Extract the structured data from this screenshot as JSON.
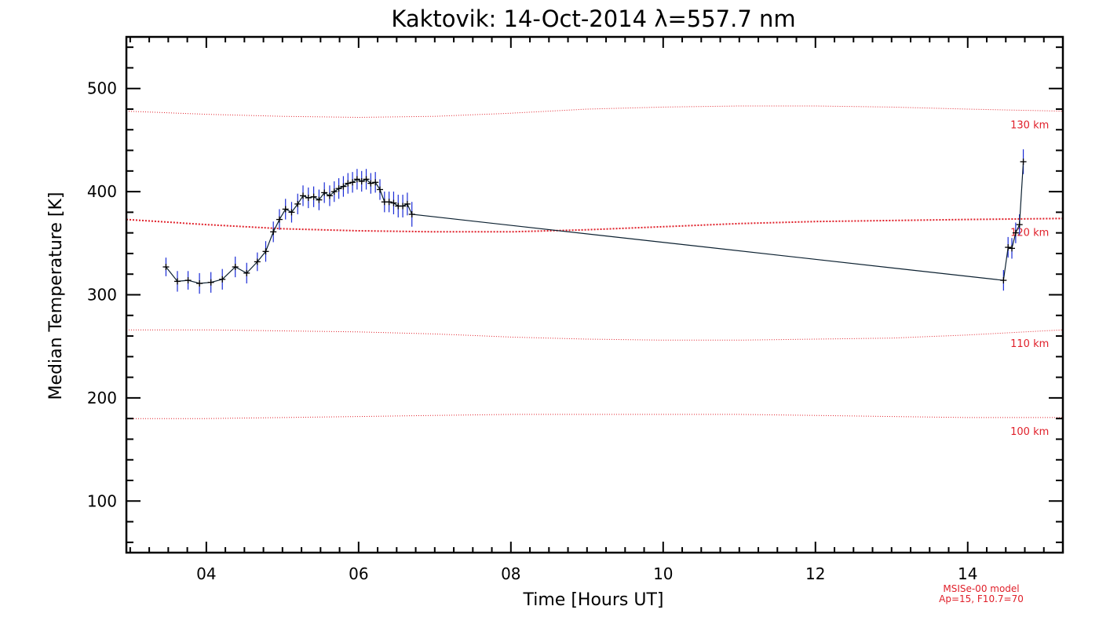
{
  "colors": {
    "axes": "#000000",
    "data_line": "#0b2030",
    "error_bars": "#1a2bd6",
    "markers": "#000000",
    "model_curves": "#e0202a"
  },
  "chart_data": {
    "type": "line",
    "title": "Kaktovik: 14-Oct-2014 λ=557.7 nm",
    "xlabel": "Time [Hours UT]",
    "ylabel": "Median Temperature [K]",
    "xlim": [
      2.95,
      15.25
    ],
    "ylim": [
      50,
      550
    ],
    "xticks": [
      4,
      6,
      8,
      10,
      12,
      14
    ],
    "xtick_labels": [
      "04",
      "06",
      "08",
      "10",
      "12",
      "14"
    ],
    "yticks": [
      100,
      200,
      300,
      400,
      500
    ],
    "ytick_labels": [
      "100",
      "200",
      "300",
      "400",
      "500"
    ],
    "x_minor_step": 0.25,
    "y_minor_step": 20,
    "grid": false,
    "series": [
      {
        "name": "Median temperature",
        "x": [
          3.47,
          3.62,
          3.76,
          3.91,
          4.06,
          4.21,
          4.38,
          4.53,
          4.67,
          4.78,
          4.88,
          4.96,
          5.04,
          5.12,
          5.2,
          5.27,
          5.34,
          5.41,
          5.48,
          5.55,
          5.62,
          5.68,
          5.74,
          5.8,
          5.86,
          5.92,
          5.98,
          6.04,
          6.1,
          6.16,
          6.22,
          6.28,
          6.34,
          6.4,
          6.46,
          6.52,
          6.58,
          6.64,
          6.7,
          14.47,
          14.53,
          14.58,
          14.63,
          14.68,
          14.73
        ],
        "y": [
          327,
          313,
          314,
          311,
          312,
          315,
          327,
          321,
          332,
          342,
          361,
          373,
          383,
          380,
          388,
          396,
          394,
          395,
          392,
          399,
          396,
          400,
          403,
          405,
          408,
          409,
          412,
          410,
          412,
          408,
          409,
          402,
          390,
          390,
          389,
          386,
          386,
          388,
          378,
          314,
          346,
          345,
          360,
          368,
          429
        ],
        "err": [
          9,
          10,
          9,
          10,
          10,
          10,
          10,
          10,
          9,
          10,
          10,
          10,
          10,
          10,
          10,
          10,
          10,
          10,
          10,
          10,
          10,
          10,
          10,
          10,
          10,
          10,
          10,
          10,
          10,
          10,
          10,
          10,
          10,
          10,
          11,
          11,
          11,
          11,
          12,
          10,
          10,
          10,
          10,
          10,
          12
        ]
      }
    ],
    "model_curves": [
      {
        "label": "130 km",
        "x": [
          2.95,
          4.0,
          5.0,
          6.0,
          7.0,
          8.0,
          9.0,
          10.0,
          11.0,
          12.0,
          13.0,
          14.0,
          15.25
        ],
        "y": [
          478,
          475,
          473,
          472,
          473,
          476,
          480,
          482,
          483,
          483,
          482,
          480,
          478
        ]
      },
      {
        "label": "120 km",
        "x": [
          2.95,
          4.0,
          5.0,
          6.0,
          7.0,
          8.0,
          9.0,
          10.0,
          11.0,
          12.0,
          13.0,
          14.0,
          15.25
        ],
        "y": [
          373,
          368,
          364,
          362,
          361,
          361,
          363,
          366,
          369,
          371,
          372,
          373,
          374
        ]
      },
      {
        "label": "110 km",
        "x": [
          2.95,
          4.0,
          5.0,
          6.0,
          7.0,
          8.0,
          9.0,
          10.0,
          11.0,
          12.0,
          13.0,
          14.0,
          15.25
        ],
        "y": [
          266,
          266,
          265,
          264,
          262,
          259,
          257,
          256,
          256,
          257,
          258,
          261,
          266
        ]
      },
      {
        "label": "100 km",
        "x": [
          2.95,
          4.0,
          5.0,
          6.0,
          7.0,
          8.0,
          9.0,
          10.0,
          11.0,
          12.0,
          13.0,
          14.0,
          15.25
        ],
        "y": [
          180,
          180,
          181,
          182,
          183,
          184,
          184,
          184,
          184,
          183,
          182,
          181,
          181
        ]
      }
    ],
    "model_label_x": 14.35,
    "annotations": [
      "MSISe-00 model",
      "Ap=15, F10.7=70"
    ]
  }
}
